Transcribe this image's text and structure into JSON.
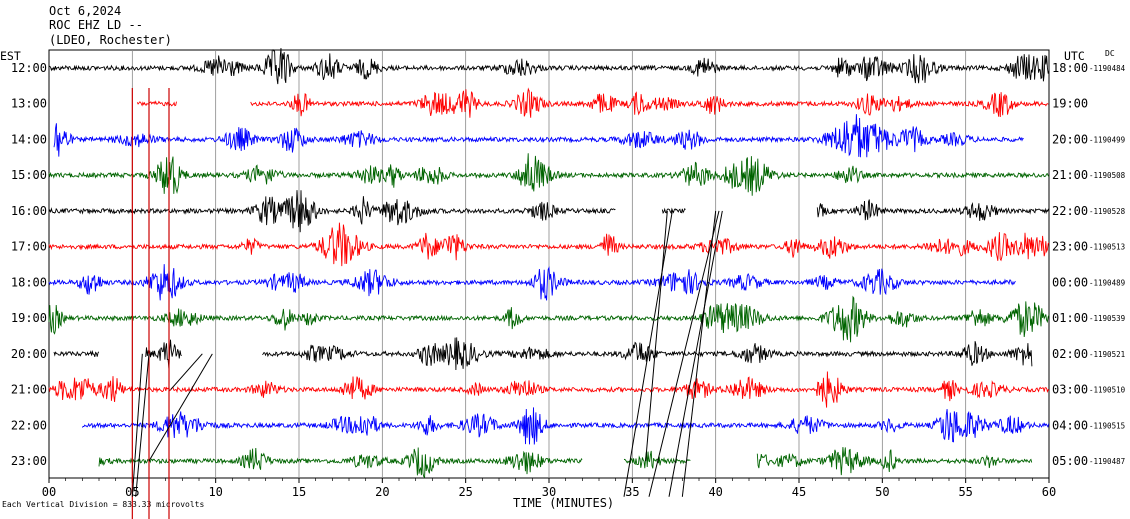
{
  "header": {
    "date": "Oct 6,2024",
    "station": "ROC EHZ LD --",
    "network": "(LDEO, Rochester)"
  },
  "labels": {
    "left_timezone": "EST",
    "right_timezone": "UTC",
    "dc": "DC",
    "time_axis": "TIME (MINUTES)",
    "scale_note": "Each Vertical Division = 833.33 microvolts"
  },
  "colors": {
    "trace_cycle": [
      "#000000",
      "#ff0000",
      "#0000ff",
      "#006400"
    ],
    "marker": "#cc0000",
    "glitch": "#000000",
    "grid": "#888888"
  },
  "chart_data": {
    "type": "line",
    "title": "Oct 6,2024",
    "xlabel": "TIME (MINUTES)",
    "ylabel": "",
    "xlim": [
      0,
      60
    ],
    "x_ticks": [
      "00",
      "05",
      "10",
      "15",
      "20",
      "25",
      "30",
      "35",
      "40",
      "45",
      "50",
      "55",
      "60"
    ],
    "rows": [
      {
        "est": "12:00",
        "utc": "18:00",
        "dc": "-1190484",
        "segments": [
          [
            0,
            60
          ]
        ]
      },
      {
        "est": "13:00",
        "utc": "19:00",
        "dc": "",
        "segments": [
          [
            5.3,
            7.7
          ],
          [
            12.1,
            60
          ]
        ]
      },
      {
        "est": "14:00",
        "utc": "20:00",
        "dc": "-1190499",
        "segments": [
          [
            0.3,
            58.5
          ]
        ]
      },
      {
        "est": "15:00",
        "utc": "21:00",
        "dc": "-1190508",
        "segments": [
          [
            0,
            60
          ]
        ]
      },
      {
        "est": "16:00",
        "utc": "22:00",
        "dc": "-1190528",
        "segments": [
          [
            0,
            34
          ],
          [
            36.8,
            38.2
          ],
          [
            46.1,
            60
          ]
        ]
      },
      {
        "est": "17:00",
        "utc": "23:00",
        "dc": "-1190513",
        "segments": [
          [
            0,
            60
          ]
        ]
      },
      {
        "est": "18:00",
        "utc": "00:00",
        "dc": "-1190489",
        "segments": [
          [
            0,
            58
          ]
        ]
      },
      {
        "est": "19:00",
        "utc": "01:00",
        "dc": "-1190539",
        "segments": [
          [
            0,
            60
          ]
        ]
      },
      {
        "est": "20:00",
        "utc": "02:00",
        "dc": "-1190521",
        "segments": [
          [
            0.3,
            3
          ],
          [
            5.8,
            8
          ],
          [
            12.8,
            59
          ]
        ]
      },
      {
        "est": "21:00",
        "utc": "03:00",
        "dc": "-1190510",
        "segments": [
          [
            0,
            60
          ]
        ]
      },
      {
        "est": "22:00",
        "utc": "04:00",
        "dc": "-1190515",
        "segments": [
          [
            2,
            60
          ]
        ]
      },
      {
        "est": "23:00",
        "utc": "05:00",
        "dc": "-1190487",
        "segments": [
          [
            3,
            32
          ],
          [
            34.5,
            38.5
          ],
          [
            42.5,
            59
          ]
        ]
      }
    ],
    "vertical_markers_min": [
      5.0,
      6.0,
      7.2
    ],
    "glitch_lines_min": [
      [
        9.2,
        8,
        7.3,
        9
      ],
      [
        9.8,
        8,
        6.0,
        11
      ],
      [
        6.0,
        8,
        5.2,
        12
      ],
      [
        5.6,
        8,
        5.0,
        12
      ],
      [
        37.1,
        4,
        35.8,
        11
      ],
      [
        37.4,
        4,
        34.5,
        12
      ],
      [
        40.2,
        4,
        36.0,
        12
      ],
      [
        40.4,
        4,
        37.2,
        12
      ],
      [
        40.0,
        4,
        38.0,
        12
      ]
    ]
  }
}
